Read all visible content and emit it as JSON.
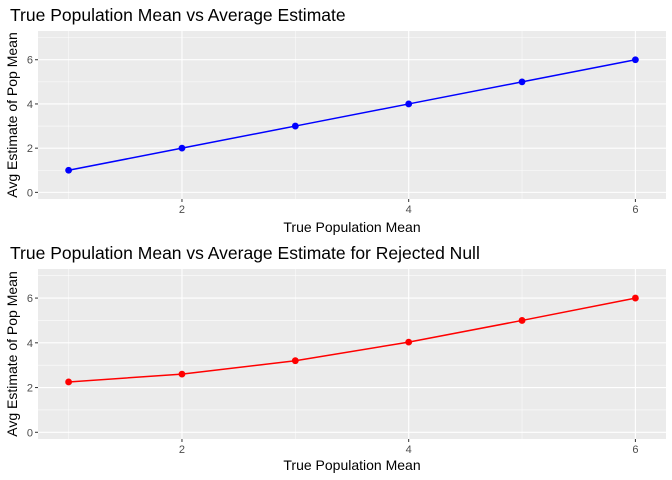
{
  "chart_data": [
    {
      "type": "line",
      "title": "True Population Mean vs Average Estimate",
      "xlabel": "True Population Mean",
      "ylabel": "Avg Estimate of Pop Mean",
      "x": [
        1,
        2,
        3,
        4,
        5,
        6
      ],
      "series": [
        {
          "values": [
            1.0,
            2.0,
            3.0,
            4.0,
            5.0,
            6.0
          ],
          "color": "#0000ff"
        }
      ],
      "xlim": [
        0.73,
        6.27
      ],
      "ylim": [
        -0.3,
        7.3
      ],
      "xticks": [
        2,
        4,
        6
      ],
      "yticks": [
        0,
        2,
        4,
        6
      ],
      "markers": true,
      "grid": true
    },
    {
      "type": "line",
      "title": "True Population Mean vs Average Estimate for Rejected Null",
      "xlabel": "True Population Mean",
      "ylabel": "Avg Estimate of Pop Mean",
      "x": [
        1,
        2,
        3,
        4,
        5,
        6
      ],
      "series": [
        {
          "values": [
            2.25,
            2.6,
            3.2,
            4.03,
            5.0,
            6.0
          ],
          "color": "#ff0000"
        }
      ],
      "xlim": [
        0.73,
        6.27
      ],
      "ylim": [
        -0.3,
        7.3
      ],
      "xticks": [
        2,
        4,
        6
      ],
      "yticks": [
        0,
        2,
        4,
        6
      ],
      "markers": true,
      "grid": true
    }
  ]
}
